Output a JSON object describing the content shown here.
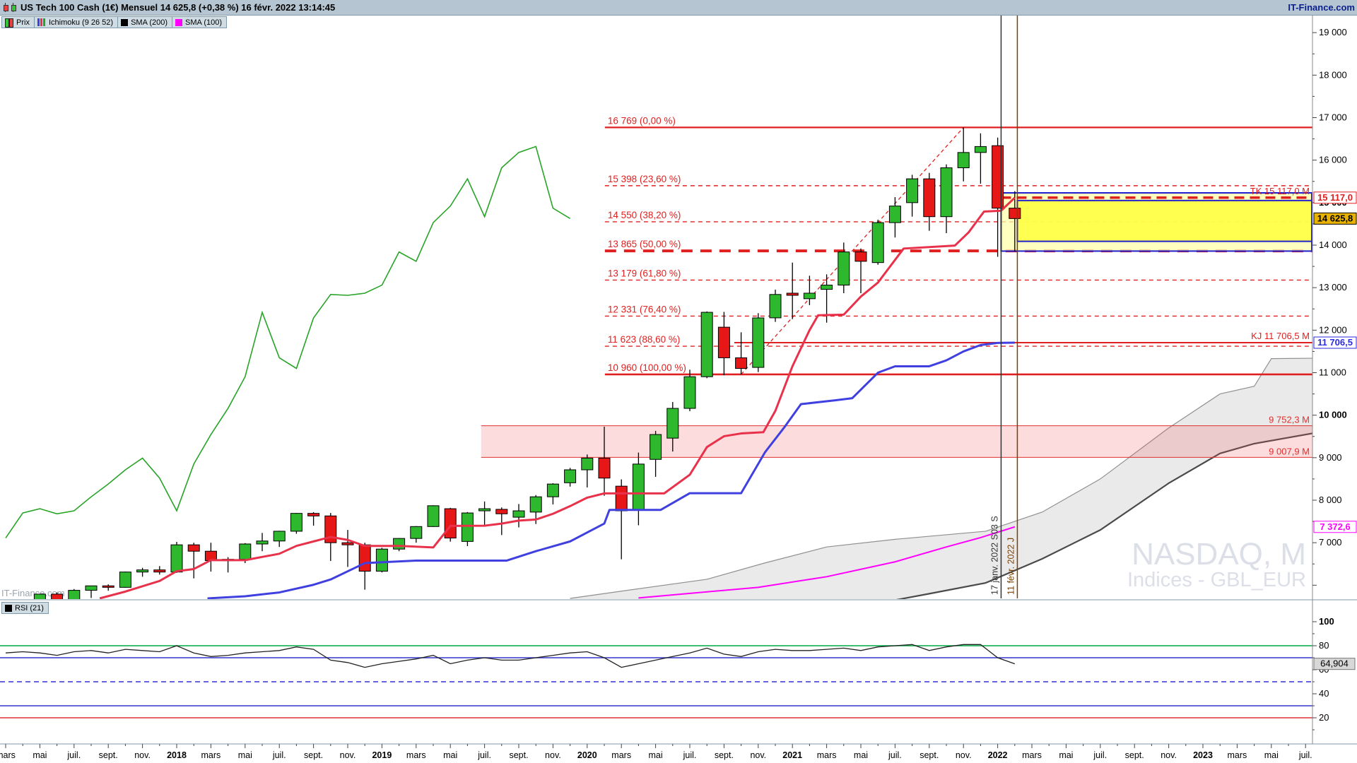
{
  "header": {
    "title": "US Tech 100 Cash (1€) Mensuel 14 625,8 (+0,38 %) 16 févr. 2022 13:14:45",
    "brand": "IT-Finance.com"
  },
  "watermark": {
    "line1": "NASDAQ, M",
    "line2": "Indices - GBL_EUR",
    "bottom_left": "IT-Finance.com"
  },
  "legend_main": {
    "price_label": "Prix",
    "ichimoku_label": "Ichimoku (9 26 52)",
    "sma200_label": "SMA (200)",
    "sma100_label": "SMA (100)"
  },
  "legend_rsi": {
    "rsi_label": "RSI (21)"
  },
  "chart_data": {
    "type": "candlestick",
    "title": "US Tech 100 Cash (1€) Mensuel",
    "interval": "Mensuel",
    "start_month": "mars 2017",
    "end_month": "févr. 2022",
    "y_axis": {
      "min": 5690,
      "max": 19500,
      "ticks": [
        7000,
        8000,
        9000,
        10000,
        11000,
        12000,
        13000,
        14000,
        15000,
        16000,
        17000,
        18000,
        19000
      ],
      "bold_ticks": [
        10000,
        15000
      ]
    },
    "x_ticks": [
      "mars",
      "mai",
      "juil.",
      "sept.",
      "nov.",
      "2018",
      "mars",
      "mai",
      "juil.",
      "sept.",
      "nov.",
      "2019",
      "mars",
      "mai",
      "juil.",
      "sept.",
      "nov.",
      "2020",
      "mars",
      "mai",
      "juil.",
      "sept.",
      "nov.",
      "2021",
      "mars",
      "mai",
      "juil.",
      "sept.",
      "nov.",
      "2022",
      "mars",
      "mai",
      "juil.",
      "sept.",
      "nov.",
      "2023",
      "mars",
      "mai",
      "juil."
    ],
    "candles": [
      [
        5340,
        5450,
        5280,
        5440
      ],
      [
        5440,
        5660,
        5410,
        5650
      ],
      [
        5650,
        5800,
        5610,
        5790
      ],
      [
        5790,
        5830,
        5560,
        5650
      ],
      [
        5650,
        5910,
        5620,
        5880
      ],
      [
        5880,
        5990,
        5700,
        5985
      ],
      [
        5985,
        6020,
        5870,
        5950
      ],
      [
        5950,
        6320,
        5940,
        6310
      ],
      [
        6310,
        6410,
        6200,
        6360
      ],
      [
        6360,
        6450,
        6250,
        6310
      ],
      [
        6310,
        7020,
        6290,
        6950
      ],
      [
        6950,
        7000,
        6160,
        6800
      ],
      [
        6800,
        7000,
        6320,
        6580
      ],
      [
        6580,
        6660,
        6300,
        6610
      ],
      [
        6610,
        6990,
        6520,
        6970
      ],
      [
        6970,
        7230,
        6800,
        7040
      ],
      [
        7040,
        7280,
        6900,
        7270
      ],
      [
        7270,
        7700,
        7210,
        7690
      ],
      [
        7690,
        7720,
        7400,
        7630
      ],
      [
        7630,
        7700,
        6570,
        7000
      ],
      [
        7000,
        7300,
        6430,
        6950
      ],
      [
        6950,
        7000,
        5895,
        6330
      ],
      [
        6330,
        6880,
        6300,
        6850
      ],
      [
        6850,
        7110,
        6800,
        7100
      ],
      [
        7100,
        7390,
        7000,
        7380
      ],
      [
        7380,
        7880,
        7370,
        7870
      ],
      [
        7800,
        7820,
        7025,
        7110
      ],
      [
        7030,
        7720,
        6920,
        7700
      ],
      [
        7750,
        7970,
        7410,
        7800
      ],
      [
        7785,
        7830,
        7180,
        7680
      ],
      [
        7600,
        7910,
        7360,
        7750
      ],
      [
        7720,
        8120,
        7440,
        8080
      ],
      [
        8080,
        8400,
        7900,
        8380
      ],
      [
        8410,
        8760,
        8320,
        8715
      ],
      [
        8715,
        9075,
        8300,
        8990
      ],
      [
        8990,
        9730,
        8105,
        8520
      ],
      [
        8330,
        8490,
        6610,
        7750
      ],
      [
        7770,
        9120,
        7410,
        8850
      ],
      [
        8960,
        9630,
        8550,
        9545
      ],
      [
        9460,
        10310,
        9145,
        10160
      ],
      [
        10160,
        11070,
        10095,
        10905
      ],
      [
        10905,
        12440,
        10870,
        12420
      ],
      [
        12070,
        12430,
        10940,
        11350
      ],
      [
        11350,
        11950,
        10960,
        11100
      ],
      [
        11124,
        12400,
        11014,
        12288
      ],
      [
        12290,
        12953,
        12195,
        12840
      ],
      [
        12870,
        13590,
        12260,
        12820
      ],
      [
        12740,
        13280,
        12590,
        12870
      ],
      [
        12960,
        13313,
        12177,
        13060
      ],
      [
        13060,
        14061,
        12870,
        13840
      ],
      [
        13840,
        13922,
        12870,
        13620
      ],
      [
        13590,
        14600,
        13540,
        14530
      ],
      [
        14530,
        15130,
        14180,
        14920
      ],
      [
        15000,
        15656,
        14670,
        15560
      ],
      [
        15560,
        15700,
        14338,
        14670
      ],
      [
        14670,
        15900,
        14282,
        15820
      ],
      [
        15820,
        16769,
        15500,
        16180
      ],
      [
        16180,
        16630,
        15446,
        16320
      ],
      [
        16340,
        16530,
        13725,
        14870
      ],
      [
        14870,
        15270,
        13850,
        14625.8
      ]
    ],
    "last_price": "14 625,8",
    "overlays": {
      "tenkan": {
        "color": "#e8324b",
        "points": [
          [
            5.5,
            5690
          ],
          [
            7,
            5850
          ],
          [
            9,
            6100
          ],
          [
            10,
            6330
          ],
          [
            11,
            6380
          ],
          [
            12,
            6590
          ],
          [
            14,
            6590
          ],
          [
            16,
            6740
          ],
          [
            17,
            6925
          ],
          [
            18,
            7030
          ],
          [
            19,
            7135
          ],
          [
            20,
            7065
          ],
          [
            21,
            6925
          ],
          [
            23,
            6925
          ],
          [
            25,
            6888
          ],
          [
            26,
            7395
          ],
          [
            28,
            7400
          ],
          [
            29,
            7450
          ],
          [
            30,
            7520
          ],
          [
            31,
            7545
          ],
          [
            32,
            7680
          ],
          [
            33,
            7860
          ],
          [
            34,
            8060
          ],
          [
            35,
            8160
          ],
          [
            38.5,
            8160
          ],
          [
            40,
            8600
          ],
          [
            41,
            9250
          ],
          [
            42,
            9505
          ],
          [
            43,
            9570
          ],
          [
            44.3,
            9600
          ],
          [
            45,
            10100
          ],
          [
            46,
            11150
          ],
          [
            47,
            12000
          ],
          [
            47.5,
            12350
          ],
          [
            49,
            12365
          ],
          [
            50,
            12790
          ],
          [
            51,
            13120
          ],
          [
            52.5,
            13920
          ],
          [
            55.5,
            13990
          ],
          [
            56.3,
            14300
          ],
          [
            57.2,
            14790
          ],
          [
            58.2,
            14810
          ],
          [
            59,
            15117
          ]
        ]
      },
      "kijun": {
        "color": "#4040e0",
        "points": [
          [
            11.8,
            5690
          ],
          [
            14,
            5740
          ],
          [
            16,
            5830
          ],
          [
            18,
            6010
          ],
          [
            19,
            6135
          ],
          [
            21,
            6520
          ],
          [
            24,
            6580
          ],
          [
            29.3,
            6580
          ],
          [
            31,
            6800
          ],
          [
            33,
            7030
          ],
          [
            35,
            7450
          ],
          [
            35.3,
            7772
          ],
          [
            38.3,
            7772
          ],
          [
            40,
            8165
          ],
          [
            43,
            8165
          ],
          [
            44.4,
            9130
          ],
          [
            45.5,
            9700
          ],
          [
            46.5,
            10260
          ],
          [
            48.5,
            10350
          ],
          [
            49.5,
            10400
          ],
          [
            51,
            11000
          ],
          [
            52,
            11150
          ],
          [
            54,
            11150
          ],
          [
            55,
            11290
          ],
          [
            56,
            11500
          ],
          [
            57,
            11650
          ],
          [
            58,
            11700
          ],
          [
            59,
            11706.5
          ]
        ]
      },
      "chikou": {
        "color": "#28a428",
        "shift": 26
      },
      "ssa": {
        "color": "#909090",
        "points": [
          [
            33,
            5690
          ],
          [
            36,
            5860
          ],
          [
            41,
            6140
          ],
          [
            44.4,
            6525
          ],
          [
            48,
            6900
          ],
          [
            52,
            7080
          ],
          [
            57.3,
            7270
          ],
          [
            60.6,
            7720
          ],
          [
            64,
            8500
          ],
          [
            68,
            9700
          ],
          [
            71,
            10500
          ],
          [
            73,
            10680
          ],
          [
            74,
            11330
          ],
          [
            76.5,
            11340
          ]
        ]
      },
      "ssb": {
        "color": "#4a4a4a",
        "points": [
          [
            50,
            5500
          ],
          [
            54,
            5800
          ],
          [
            57.3,
            6055
          ],
          [
            60.6,
            6620
          ],
          [
            64,
            7300
          ],
          [
            68,
            8400
          ],
          [
            71,
            9100
          ],
          [
            73,
            9330
          ],
          [
            76.5,
            9580
          ]
        ]
      },
      "cloud_fill": "#e3e3e3",
      "sma100": {
        "color": "#ff00ff",
        "points": [
          [
            37,
            5700
          ],
          [
            44,
            5950
          ],
          [
            48,
            6200
          ],
          [
            52,
            6550
          ],
          [
            55,
            6900
          ],
          [
            57,
            7120
          ],
          [
            59,
            7372.6
          ]
        ]
      }
    },
    "fibonacci": {
      "label_x_month": 35.2,
      "diagonal": {
        "from": [
          43,
          10960
        ],
        "to": [
          56,
          16769
        ]
      },
      "levels": [
        {
          "text": "16 769 (0,00 %)",
          "value": 16769,
          "style": "solid"
        },
        {
          "text": "15 398 (23,60 %)",
          "value": 15398,
          "style": "dashed"
        },
        {
          "text": "14 550 (38,20 %)",
          "value": 14550,
          "style": "dashed"
        },
        {
          "text": "13 865 (50,00 %)",
          "value": 13865,
          "style": "thickdash"
        },
        {
          "text": "13 179 (61,80 %)",
          "value": 13179,
          "style": "dashed"
        },
        {
          "text": "12 331 (76,40 %)",
          "value": 12331,
          "style": "dashed"
        },
        {
          "text": "11 623 (88,60 %)",
          "value": 11623,
          "style": "dashed"
        },
        {
          "text": "10 960 (100,00 %)",
          "value": 10960,
          "style": "solid2"
        }
      ]
    },
    "level_lines": [
      {
        "text": "TK 15 117,0 M",
        "value": 15117.0,
        "style": "thickdash",
        "from_month": 58.2,
        "color": "#e02020"
      },
      {
        "text": "KJ 11 706,5 M",
        "value": 11706.5,
        "style": "solid",
        "from_month": 42.6,
        "color": "#e02020"
      }
    ],
    "band": {
      "top_text": "9 752,3 M",
      "top": 9752.3,
      "bottom_text": "9 007,9 M",
      "bottom": 9007.9,
      "from_month": 27.8,
      "fill": "rgba(240,80,80,0.20)",
      "line_color": "#e03030"
    },
    "rectangles": [
      {
        "from_month": 58.2,
        "top": 15230,
        "bottom": 13860,
        "fill": "rgba(255,255,170,0.75)",
        "border": "#1f1fd0"
      },
      {
        "from_month": 59.15,
        "top": 15050,
        "bottom": 14090,
        "fill": "rgba(255,255,60,0.85)",
        "border": "#1f1fd0"
      }
    ],
    "vlines": [
      {
        "month": 58.2,
        "color": "#333333",
        "label": "17 janv. 2022 S03 S"
      },
      {
        "month": 59.15,
        "color": "#7b3f00",
        "label": "11 févr. 2022 J"
      }
    ],
    "price_markers": [
      {
        "text": "15 117,0",
        "value": 15117.0,
        "fg": "#e02020",
        "bg": "#ffffff",
        "border": "#e02020"
      },
      {
        "text": "14 625,8",
        "value": 14625.8,
        "fg": "#000000",
        "bg": "#e8b200",
        "border": "#000000"
      },
      {
        "text": "11 706,5",
        "value": 11706.5,
        "fg": "#2a2ae0",
        "bg": "#ffffff",
        "border": "#2a2ae0"
      },
      {
        "text": "7 372,6",
        "value": 7372.6,
        "fg": "#ff00ff",
        "bg": "#ffffff",
        "border": "#ff00ff"
      }
    ],
    "rsi_panel": {
      "name": "RSI (21)",
      "values": [
        74,
        75,
        74,
        72,
        75,
        76,
        74,
        77,
        76,
        75,
        80,
        74,
        71,
        72,
        74,
        75,
        76,
        79,
        77,
        68,
        66,
        62,
        65,
        67,
        69,
        72,
        65,
        68,
        70,
        68,
        68,
        70,
        72,
        74,
        75,
        70,
        62,
        65,
        68,
        71,
        74,
        78,
        73,
        71,
        75,
        77,
        76,
        76,
        77,
        78,
        76,
        79,
        80,
        81,
        76,
        79,
        81,
        81,
        70,
        64.9
      ],
      "current_text": "64,904",
      "current": 64.904,
      "ticks": [
        100,
        80,
        60,
        40,
        20
      ],
      "bold_ticks": [
        100
      ],
      "hlines": [
        {
          "value": 80,
          "color": "#00a844",
          "style": "solid"
        },
        {
          "value": 70,
          "color": "#3333cc",
          "style": "solid"
        },
        {
          "value": 50,
          "color": "#3333cc",
          "style": "dashed"
        },
        {
          "value": 30,
          "color": "#3333cc",
          "style": "solid"
        },
        {
          "value": 20,
          "color": "#e03030",
          "style": "solid"
        }
      ]
    },
    "colors": {
      "up": "#2db82d",
      "down": "#e81717",
      "candle_border": "#000000",
      "fib": "#e02020",
      "axis_text": "#000000"
    }
  }
}
